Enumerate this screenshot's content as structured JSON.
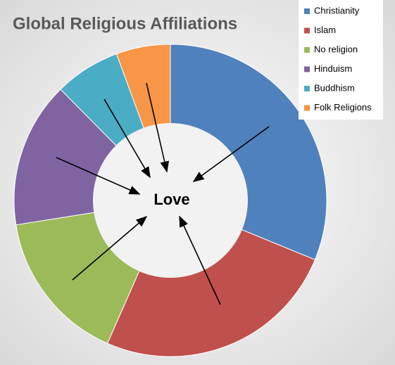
{
  "chart_data": {
    "type": "donut",
    "title": "Global Religious Affiliations",
    "center_label": "Love",
    "categories": [
      "Christianity",
      "Islam",
      "No religion",
      "Hinduism",
      "Buddhism",
      "Folk Religions"
    ],
    "values": [
      31.2,
      25.4,
      15.9,
      15.1,
      6.8,
      5.6
    ],
    "colors": [
      "#4f81bd",
      "#c0504d",
      "#9bbb59",
      "#8064a2",
      "#4bacc6",
      "#f79646"
    ],
    "legend": "top-right"
  }
}
